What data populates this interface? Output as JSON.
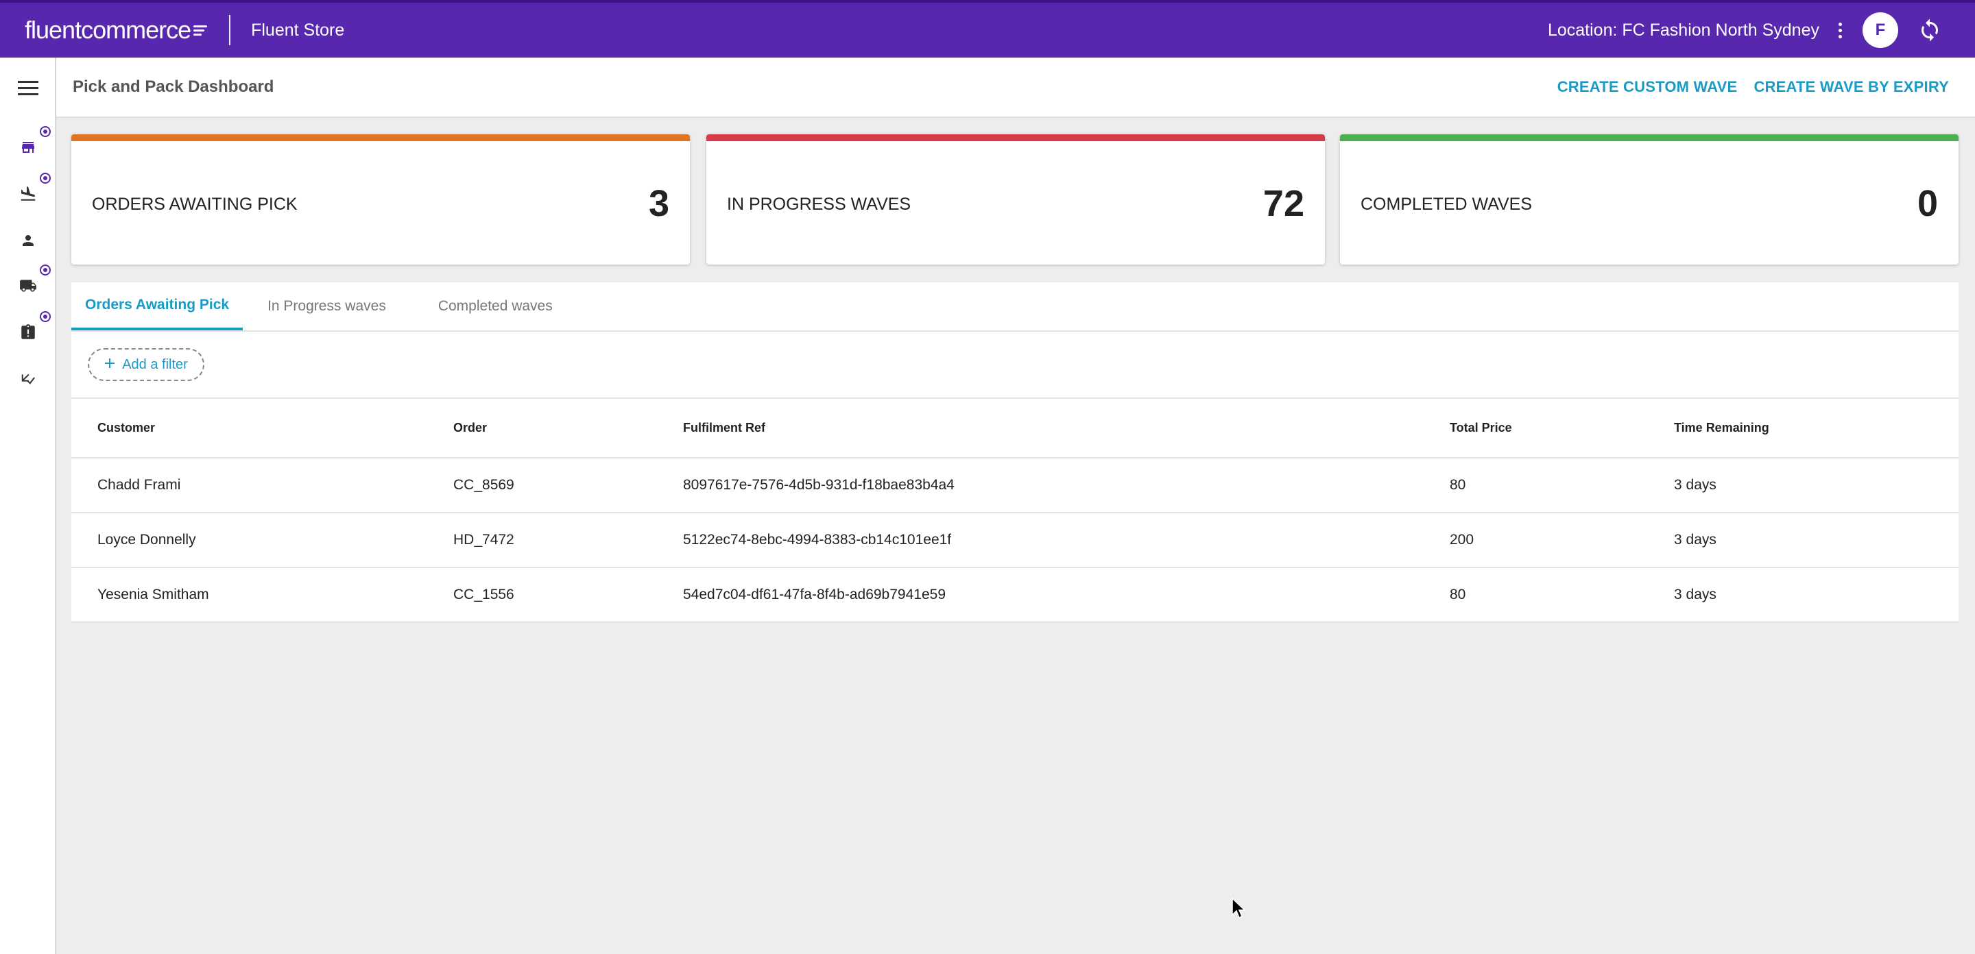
{
  "topbar": {
    "logo_text": "fluentcommerce",
    "store_name": "Fluent Store",
    "location": "Location: FC Fashion North Sydney",
    "avatar_initial": "F",
    "brand_color": "#5727ad"
  },
  "sidebar": {
    "items": [
      {
        "icon": "menu-icon"
      },
      {
        "icon": "store-icon"
      },
      {
        "icon": "flight-land-icon"
      },
      {
        "icon": "person-icon"
      },
      {
        "icon": "truck-icon"
      },
      {
        "icon": "clipboard-alert-icon"
      },
      {
        "icon": "checklist-icon"
      }
    ]
  },
  "header": {
    "title": "Pick and Pack Dashboard",
    "actions": [
      "CREATE CUSTOM WAVE",
      "CREATE WAVE BY EXPIRY"
    ]
  },
  "cards": [
    {
      "label": "ORDERS AWAITING PICK",
      "value": "3",
      "color": "#e07423"
    },
    {
      "label": "IN PROGRESS WAVES",
      "value": "72",
      "color": "#d63a46"
    },
    {
      "label": "COMPLETED WAVES",
      "value": "0",
      "color": "#4caf50"
    }
  ],
  "tabs": [
    "Orders Awaiting Pick",
    "In Progress waves",
    "Completed waves"
  ],
  "active_tab": "Orders Awaiting Pick",
  "filter": {
    "add_label": "Add a filter"
  },
  "table": {
    "columns": [
      "Customer",
      "Order",
      "Fulfilment Ref",
      "Total Price",
      "Time Remaining"
    ],
    "rows": [
      [
        "Chadd Frami",
        "CC_8569",
        "8097617e-7576-4d5b-931d-f18bae83b4a4",
        "80",
        "3 days"
      ],
      [
        "Loyce Donnelly",
        "HD_7472",
        "5122ec74-8ebc-4994-8383-cb14c101ee1f",
        "200",
        "3 days"
      ],
      [
        "Yesenia Smitham",
        "CC_1556",
        "54ed7c04-df61-47fa-8f4b-ad69b7941e59",
        "80",
        "3 days"
      ]
    ]
  }
}
